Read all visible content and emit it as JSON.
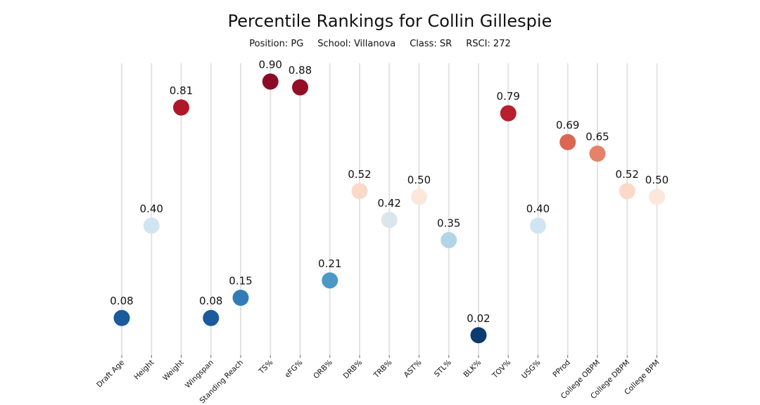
{
  "header": {
    "title": "Percentile Rankings for Collin Gillespie",
    "position": "Position: PG",
    "school": "School: Villanova",
    "class": "Class: SR",
    "rsci": "RSCI: 272"
  },
  "chart_data": {
    "type": "scatter",
    "title": "Percentile Rankings for Collin Gillespie",
    "subtitle": "Position: PG   School: Villanova   Class: SR   RSCI: 272",
    "xlabel": "",
    "ylabel": "",
    "ylim": [
      0,
      1
    ],
    "grid": "vertical",
    "categories": [
      "Draft Age",
      "Height",
      "Weight",
      "Wingspan",
      "Standing Reach",
      "TS%",
      "eFG%",
      "ORB%",
      "DRB%",
      "TRB%",
      "AST%",
      "STL%",
      "BLK%",
      "TOV%",
      "USG%",
      "PProd",
      "College OBPM",
      "College DBPM",
      "College BPM"
    ],
    "values": [
      0.08,
      0.4,
      0.81,
      0.08,
      0.15,
      0.9,
      0.88,
      0.21,
      0.52,
      0.42,
      0.5,
      0.35,
      0.02,
      0.79,
      0.4,
      0.69,
      0.65,
      0.52,
      0.5
    ],
    "labels": [
      "0.08",
      "0.40",
      "0.81",
      "0.08",
      "0.15",
      "0.90",
      "0.88",
      "0.21",
      "0.52",
      "0.42",
      "0.50",
      "0.35",
      "0.02",
      "0.79",
      "0.40",
      "0.69",
      "0.65",
      "0.52",
      "0.50"
    ],
    "colormap": "RdBu_r"
  }
}
